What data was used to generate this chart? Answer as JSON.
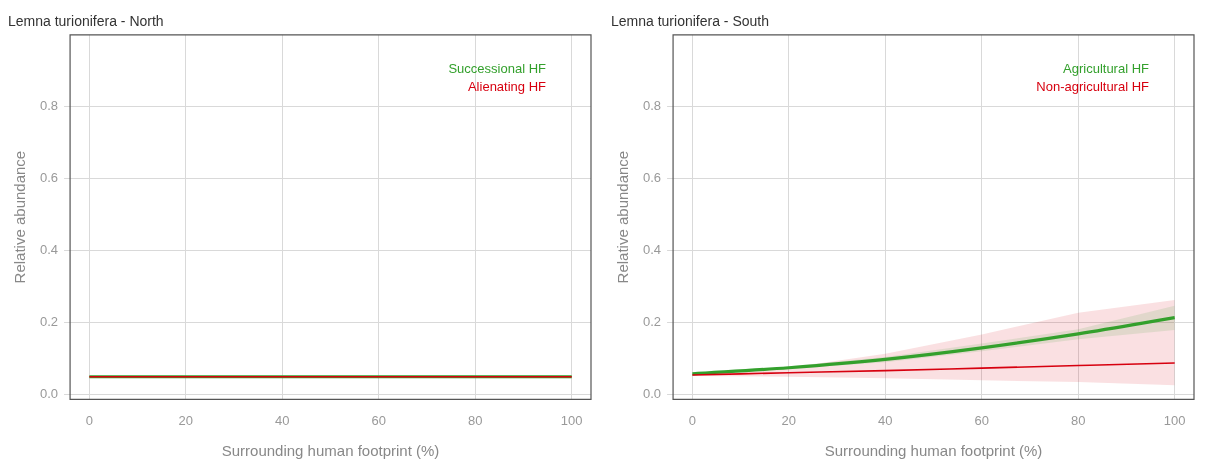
{
  "chart_data": [
    {
      "type": "line",
      "title": "Lemna turionifera - North",
      "xlabel": "Surrounding human footprint (%)",
      "ylabel": "Relative abundance",
      "x": [
        0,
        20,
        40,
        60,
        80,
        100
      ],
      "xlim": [
        -4,
        104
      ],
      "ylim": [
        -0.013,
        1
      ],
      "xticks": [
        0,
        20,
        40,
        60,
        80,
        100
      ],
      "yticks": [
        {
          "value": 0,
          "label": "0.0"
        },
        0.2,
        0.4,
        0.6,
        0.8
      ],
      "grid": true,
      "legend": "top right",
      "marker": "none",
      "line_style": "solid",
      "series": [
        {
          "name": "Successional HF",
          "color": "#33a02c",
          "values": [
            0.05,
            0.05,
            0.05,
            0.05,
            0.05,
            0.05
          ],
          "lower": [
            0.049,
            0.048,
            0.048,
            0.047,
            0.046,
            0.046
          ],
          "upper": [
            0.051,
            0.052,
            0.052,
            0.053,
            0.054,
            0.055
          ]
        },
        {
          "name": "Alienating HF",
          "color": "#d7000f",
          "values": [
            0.05,
            0.05,
            0.05,
            0.05,
            0.05,
            0.05
          ]
        }
      ]
    },
    {
      "type": "line",
      "title": "Lemna turionifera - South",
      "xlabel": "Surrounding human footprint (%)",
      "ylabel": "Relative abundance",
      "x": [
        0,
        20,
        40,
        60,
        80,
        100
      ],
      "xlim": [
        -4,
        104
      ],
      "ylim": [
        -0.013,
        1
      ],
      "xticks": [
        0,
        20,
        40,
        60,
        80,
        100
      ],
      "yticks": [
        {
          "value": 0,
          "label": "0.0"
        },
        0.2,
        0.4,
        0.6,
        0.8
      ],
      "grid": true,
      "legend": "top right",
      "marker": "none",
      "line_style": "solid",
      "series": [
        {
          "name": "Agricultural HF",
          "color": "#33a02c",
          "values": [
            0.058,
            0.075,
            0.098,
            0.13,
            0.169,
            0.214
          ],
          "lower": [
            0.054,
            0.072,
            0.09,
            0.121,
            0.154,
            0.18
          ],
          "upper": [
            0.063,
            0.079,
            0.105,
            0.142,
            0.182,
            0.247
          ]
        },
        {
          "name": "Non-agricultural HF",
          "color": "#d7000f",
          "values": [
            0.055,
            0.061,
            0.067,
            0.074,
            0.081,
            0.088
          ],
          "lower": [
            0.052,
            0.05,
            0.046,
            0.04,
            0.035,
            0.026
          ],
          "upper": [
            0.058,
            0.075,
            0.114,
            0.167,
            0.228,
            0.263
          ]
        }
      ]
    }
  ]
}
